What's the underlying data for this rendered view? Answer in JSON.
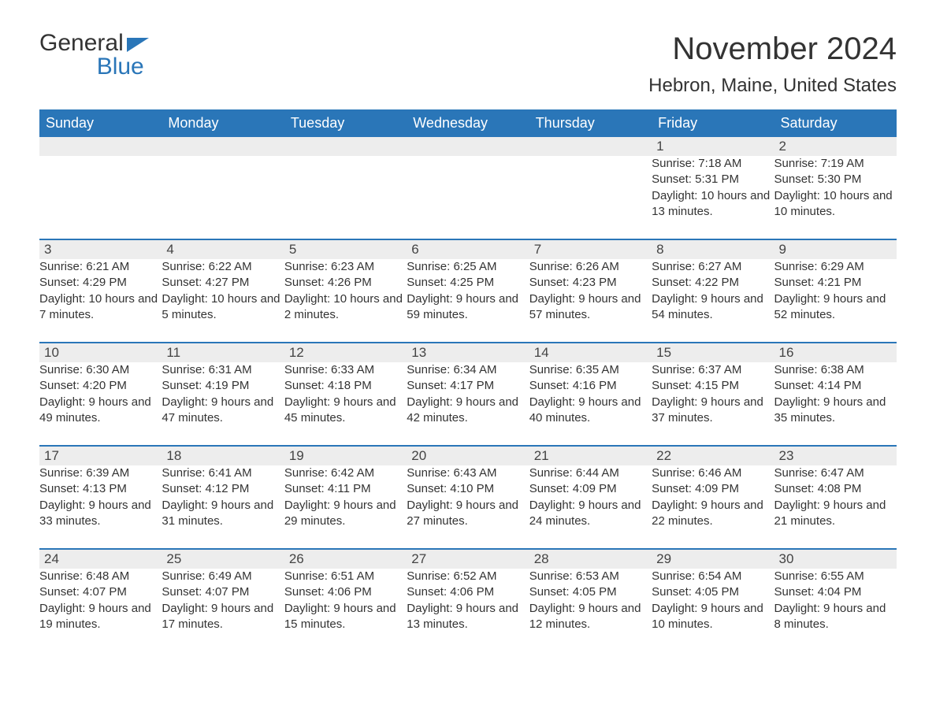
{
  "logo": {
    "top": "General",
    "bottom": "Blue"
  },
  "title": "November 2024",
  "location": "Hebron, Maine, United States",
  "colors": {
    "header_bg": "#2a76b8",
    "header_text": "#ffffff",
    "daynum_bg": "#ededed",
    "text": "#333333",
    "divider": "#2a76b8"
  },
  "weekdays": [
    "Sunday",
    "Monday",
    "Tuesday",
    "Wednesday",
    "Thursday",
    "Friday",
    "Saturday"
  ],
  "weeks": [
    [
      {
        "num": "",
        "sunrise": "",
        "sunset": "",
        "daylight": ""
      },
      {
        "num": "",
        "sunrise": "",
        "sunset": "",
        "daylight": ""
      },
      {
        "num": "",
        "sunrise": "",
        "sunset": "",
        "daylight": ""
      },
      {
        "num": "",
        "sunrise": "",
        "sunset": "",
        "daylight": ""
      },
      {
        "num": "",
        "sunrise": "",
        "sunset": "",
        "daylight": ""
      },
      {
        "num": "1",
        "sunrise": "Sunrise: 7:18 AM",
        "sunset": "Sunset: 5:31 PM",
        "daylight": "Daylight: 10 hours and 13 minutes."
      },
      {
        "num": "2",
        "sunrise": "Sunrise: 7:19 AM",
        "sunset": "Sunset: 5:30 PM",
        "daylight": "Daylight: 10 hours and 10 minutes."
      }
    ],
    [
      {
        "num": "3",
        "sunrise": "Sunrise: 6:21 AM",
        "sunset": "Sunset: 4:29 PM",
        "daylight": "Daylight: 10 hours and 7 minutes."
      },
      {
        "num": "4",
        "sunrise": "Sunrise: 6:22 AM",
        "sunset": "Sunset: 4:27 PM",
        "daylight": "Daylight: 10 hours and 5 minutes."
      },
      {
        "num": "5",
        "sunrise": "Sunrise: 6:23 AM",
        "sunset": "Sunset: 4:26 PM",
        "daylight": "Daylight: 10 hours and 2 minutes."
      },
      {
        "num": "6",
        "sunrise": "Sunrise: 6:25 AM",
        "sunset": "Sunset: 4:25 PM",
        "daylight": "Daylight: 9 hours and 59 minutes."
      },
      {
        "num": "7",
        "sunrise": "Sunrise: 6:26 AM",
        "sunset": "Sunset: 4:23 PM",
        "daylight": "Daylight: 9 hours and 57 minutes."
      },
      {
        "num": "8",
        "sunrise": "Sunrise: 6:27 AM",
        "sunset": "Sunset: 4:22 PM",
        "daylight": "Daylight: 9 hours and 54 minutes."
      },
      {
        "num": "9",
        "sunrise": "Sunrise: 6:29 AM",
        "sunset": "Sunset: 4:21 PM",
        "daylight": "Daylight: 9 hours and 52 minutes."
      }
    ],
    [
      {
        "num": "10",
        "sunrise": "Sunrise: 6:30 AM",
        "sunset": "Sunset: 4:20 PM",
        "daylight": "Daylight: 9 hours and 49 minutes."
      },
      {
        "num": "11",
        "sunrise": "Sunrise: 6:31 AM",
        "sunset": "Sunset: 4:19 PM",
        "daylight": "Daylight: 9 hours and 47 minutes."
      },
      {
        "num": "12",
        "sunrise": "Sunrise: 6:33 AM",
        "sunset": "Sunset: 4:18 PM",
        "daylight": "Daylight: 9 hours and 45 minutes."
      },
      {
        "num": "13",
        "sunrise": "Sunrise: 6:34 AM",
        "sunset": "Sunset: 4:17 PM",
        "daylight": "Daylight: 9 hours and 42 minutes."
      },
      {
        "num": "14",
        "sunrise": "Sunrise: 6:35 AM",
        "sunset": "Sunset: 4:16 PM",
        "daylight": "Daylight: 9 hours and 40 minutes."
      },
      {
        "num": "15",
        "sunrise": "Sunrise: 6:37 AM",
        "sunset": "Sunset: 4:15 PM",
        "daylight": "Daylight: 9 hours and 37 minutes."
      },
      {
        "num": "16",
        "sunrise": "Sunrise: 6:38 AM",
        "sunset": "Sunset: 4:14 PM",
        "daylight": "Daylight: 9 hours and 35 minutes."
      }
    ],
    [
      {
        "num": "17",
        "sunrise": "Sunrise: 6:39 AM",
        "sunset": "Sunset: 4:13 PM",
        "daylight": "Daylight: 9 hours and 33 minutes."
      },
      {
        "num": "18",
        "sunrise": "Sunrise: 6:41 AM",
        "sunset": "Sunset: 4:12 PM",
        "daylight": "Daylight: 9 hours and 31 minutes."
      },
      {
        "num": "19",
        "sunrise": "Sunrise: 6:42 AM",
        "sunset": "Sunset: 4:11 PM",
        "daylight": "Daylight: 9 hours and 29 minutes."
      },
      {
        "num": "20",
        "sunrise": "Sunrise: 6:43 AM",
        "sunset": "Sunset: 4:10 PM",
        "daylight": "Daylight: 9 hours and 27 minutes."
      },
      {
        "num": "21",
        "sunrise": "Sunrise: 6:44 AM",
        "sunset": "Sunset: 4:09 PM",
        "daylight": "Daylight: 9 hours and 24 minutes."
      },
      {
        "num": "22",
        "sunrise": "Sunrise: 6:46 AM",
        "sunset": "Sunset: 4:09 PM",
        "daylight": "Daylight: 9 hours and 22 minutes."
      },
      {
        "num": "23",
        "sunrise": "Sunrise: 6:47 AM",
        "sunset": "Sunset: 4:08 PM",
        "daylight": "Daylight: 9 hours and 21 minutes."
      }
    ],
    [
      {
        "num": "24",
        "sunrise": "Sunrise: 6:48 AM",
        "sunset": "Sunset: 4:07 PM",
        "daylight": "Daylight: 9 hours and 19 minutes."
      },
      {
        "num": "25",
        "sunrise": "Sunrise: 6:49 AM",
        "sunset": "Sunset: 4:07 PM",
        "daylight": "Daylight: 9 hours and 17 minutes."
      },
      {
        "num": "26",
        "sunrise": "Sunrise: 6:51 AM",
        "sunset": "Sunset: 4:06 PM",
        "daylight": "Daylight: 9 hours and 15 minutes."
      },
      {
        "num": "27",
        "sunrise": "Sunrise: 6:52 AM",
        "sunset": "Sunset: 4:06 PM",
        "daylight": "Daylight: 9 hours and 13 minutes."
      },
      {
        "num": "28",
        "sunrise": "Sunrise: 6:53 AM",
        "sunset": "Sunset: 4:05 PM",
        "daylight": "Daylight: 9 hours and 12 minutes."
      },
      {
        "num": "29",
        "sunrise": "Sunrise: 6:54 AM",
        "sunset": "Sunset: 4:05 PM",
        "daylight": "Daylight: 9 hours and 10 minutes."
      },
      {
        "num": "30",
        "sunrise": "Sunrise: 6:55 AM",
        "sunset": "Sunset: 4:04 PM",
        "daylight": "Daylight: 9 hours and 8 minutes."
      }
    ]
  ]
}
